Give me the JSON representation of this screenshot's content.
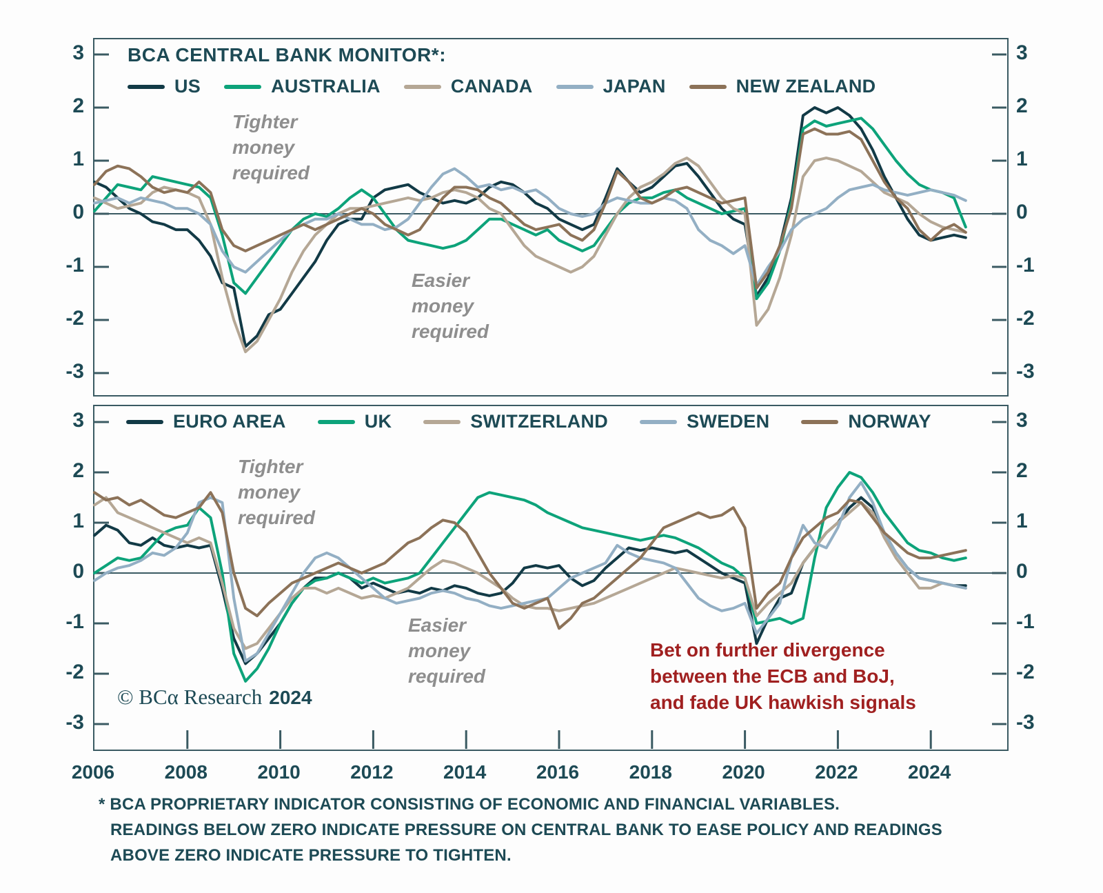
{
  "title": "BCA CENTRAL BANK MONITOR*:",
  "colors": {
    "navy": "#123a46",
    "green": "#0da37a",
    "tan": "#b5a795",
    "steel_blue": "#93afc4",
    "brown": "#8c7258",
    "text": "#1d4a55",
    "annotation_gray": "#8e8e8e",
    "callout_red": "#a02020",
    "axis": "#3a5a62"
  },
  "annotations": {
    "tighter": [
      "Tighter",
      "money",
      "required"
    ],
    "easier": [
      "Easier",
      "money",
      "required"
    ]
  },
  "callout": [
    "Bet on further divergence",
    "between the ECB and BoJ,",
    "and fade UK hawkish signals"
  ],
  "copyright": {
    "text": "© BCα Research",
    "year": "2024"
  },
  "footnote": [
    "* BCA PROPRIETARY INDICATOR CONSISTING OF ECONOMIC AND FINANCIAL VARIABLES.",
    "READINGS BELOW ZERO INDICATE PRESSURE ON CENTRAL BANK TO EASE POLICY AND READINGS",
    "ABOVE ZERO INDICATE PRESSURE TO TIGHTEN."
  ],
  "y_axis": {
    "ticks": [
      3,
      2,
      1,
      0,
      -1,
      -2,
      -3
    ]
  },
  "x_axis": {
    "labels": [
      "2006",
      "2008",
      "2010",
      "2012",
      "2014",
      "2016",
      "2018",
      "2020",
      "2022",
      "2024"
    ]
  },
  "chart_data": [
    {
      "type": "line",
      "panel": "top",
      "title": "BCA CENTRAL BANK MONITOR",
      "ylim": [
        -3,
        3
      ],
      "x_start": 2006.0,
      "x_step": 0.25,
      "series": [
        {
          "name": "US",
          "color": "navy",
          "values": [
            0.6,
            0.5,
            0.3,
            0.1,
            0.0,
            -0.15,
            -0.2,
            -0.3,
            -0.3,
            -0.5,
            -0.8,
            -1.3,
            -1.4,
            -2.5,
            -2.3,
            -1.9,
            -1.8,
            -1.5,
            -1.2,
            -0.9,
            -0.5,
            -0.2,
            -0.1,
            -0.1,
            0.3,
            0.45,
            0.5,
            0.55,
            0.4,
            0.3,
            0.2,
            0.25,
            0.2,
            0.3,
            0.5,
            0.6,
            0.55,
            0.4,
            0.2,
            0.1,
            -0.1,
            -0.2,
            -0.3,
            -0.2,
            0.3,
            0.85,
            0.6,
            0.4,
            0.5,
            0.7,
            0.9,
            0.95,
            0.7,
            0.4,
            0.1,
            -0.1,
            -0.2,
            -1.55,
            -1.2,
            -0.6,
            0.3,
            1.85,
            2.0,
            1.9,
            2.0,
            1.85,
            1.6,
            1.2,
            0.7,
            0.3,
            -0.1,
            -0.4,
            -0.5,
            -0.45,
            -0.4,
            -0.45
          ]
        },
        {
          "name": "AUSTRALIA",
          "color": "green",
          "values": [
            0.05,
            0.3,
            0.55,
            0.5,
            0.45,
            0.7,
            0.65,
            0.6,
            0.55,
            0.5,
            0.3,
            -0.4,
            -1.3,
            -1.5,
            -1.2,
            -0.9,
            -0.6,
            -0.3,
            -0.1,
            0.0,
            -0.05,
            0.1,
            0.3,
            0.45,
            0.3,
            0.0,
            -0.3,
            -0.5,
            -0.55,
            -0.6,
            -0.65,
            -0.6,
            -0.5,
            -0.3,
            -0.1,
            -0.1,
            -0.2,
            -0.3,
            -0.4,
            -0.3,
            -0.5,
            -0.6,
            -0.7,
            -0.6,
            -0.3,
            0.0,
            0.2,
            0.3,
            0.3,
            0.4,
            0.45,
            0.3,
            0.2,
            0.1,
            0.0,
            0.05,
            0.1,
            -1.6,
            -1.3,
            -0.7,
            0.2,
            1.6,
            1.75,
            1.65,
            1.7,
            1.75,
            1.8,
            1.6,
            1.3,
            1.0,
            0.75,
            0.55,
            0.45,
            0.4,
            0.3,
            -0.25
          ]
        },
        {
          "name": "CANADA",
          "color": "tan",
          "values": [
            0.3,
            0.2,
            0.1,
            0.15,
            0.2,
            0.4,
            0.5,
            0.45,
            0.4,
            0.3,
            -0.2,
            -1.2,
            -2.0,
            -2.6,
            -2.4,
            -2.0,
            -1.6,
            -1.1,
            -0.7,
            -0.4,
            -0.2,
            0.0,
            0.1,
            0.1,
            0.15,
            0.2,
            0.25,
            0.3,
            0.25,
            0.3,
            0.4,
            0.45,
            0.4,
            0.3,
            0.1,
            0.0,
            -0.3,
            -0.6,
            -0.8,
            -0.9,
            -1.0,
            -1.1,
            -1.0,
            -0.8,
            -0.4,
            0.0,
            0.3,
            0.5,
            0.6,
            0.75,
            0.95,
            1.05,
            0.9,
            0.6,
            0.3,
            0.1,
            0.0,
            -2.1,
            -1.8,
            -1.2,
            -0.4,
            0.7,
            1.0,
            1.05,
            1.0,
            0.9,
            0.8,
            0.6,
            0.4,
            0.3,
            0.2,
            0.0,
            -0.15,
            -0.25,
            -0.3,
            -0.35
          ]
        },
        {
          "name": "JAPAN",
          "color": "steel_blue",
          "values": [
            0.2,
            0.25,
            0.3,
            0.2,
            0.3,
            0.25,
            0.2,
            0.1,
            0.1,
            0.0,
            -0.2,
            -0.7,
            -1.0,
            -1.1,
            -0.9,
            -0.7,
            -0.5,
            -0.3,
            -0.2,
            -0.1,
            -0.1,
            0.0,
            -0.1,
            -0.2,
            -0.2,
            -0.3,
            -0.25,
            -0.1,
            0.2,
            0.5,
            0.75,
            0.85,
            0.7,
            0.5,
            0.55,
            0.45,
            0.5,
            0.4,
            0.45,
            0.3,
            0.1,
            0.0,
            -0.05,
            0.0,
            0.2,
            0.3,
            0.25,
            0.2,
            0.2,
            0.3,
            0.25,
            0.1,
            -0.3,
            -0.5,
            -0.6,
            -0.75,
            -0.6,
            -1.35,
            -1.0,
            -0.7,
            -0.3,
            -0.1,
            0.0,
            0.1,
            0.3,
            0.45,
            0.5,
            0.55,
            0.45,
            0.4,
            0.35,
            0.4,
            0.45,
            0.4,
            0.35,
            0.25
          ]
        },
        {
          "name": "NEW ZEALAND",
          "color": "brown",
          "values": [
            0.55,
            0.8,
            0.9,
            0.85,
            0.7,
            0.5,
            0.4,
            0.45,
            0.4,
            0.6,
            0.4,
            -0.3,
            -0.6,
            -0.7,
            -0.6,
            -0.5,
            -0.4,
            -0.3,
            -0.2,
            -0.3,
            -0.2,
            -0.1,
            0.0,
            0.1,
            0.0,
            -0.2,
            -0.3,
            -0.4,
            -0.3,
            0.0,
            0.3,
            0.5,
            0.5,
            0.45,
            0.3,
            0.2,
            0.0,
            -0.2,
            -0.3,
            -0.25,
            -0.2,
            -0.4,
            -0.5,
            -0.3,
            0.2,
            0.8,
            0.6,
            0.3,
            0.2,
            0.3,
            0.45,
            0.5,
            0.4,
            0.3,
            0.2,
            0.25,
            0.3,
            -1.4,
            -1.1,
            -0.6,
            0.1,
            1.5,
            1.6,
            1.5,
            1.5,
            1.55,
            1.4,
            1.0,
            0.6,
            0.3,
            0.1,
            -0.3,
            -0.5,
            -0.3,
            -0.2,
            -0.35
          ]
        }
      ]
    },
    {
      "type": "line",
      "panel": "bottom",
      "title": "BCA CENTRAL BANK MONITOR",
      "ylim": [
        -3,
        3
      ],
      "x_start": 2006.0,
      "x_step": 0.25,
      "series": [
        {
          "name": "EURO AREA",
          "color": "navy",
          "values": [
            0.75,
            0.95,
            0.85,
            0.6,
            0.55,
            0.7,
            0.55,
            0.5,
            0.55,
            0.5,
            0.55,
            -0.3,
            -1.3,
            -1.8,
            -1.6,
            -1.3,
            -1.0,
            -0.6,
            -0.3,
            -0.1,
            -0.1,
            0.0,
            -0.1,
            -0.3,
            -0.2,
            -0.3,
            -0.4,
            -0.35,
            -0.4,
            -0.3,
            -0.35,
            -0.25,
            -0.3,
            -0.4,
            -0.45,
            -0.4,
            -0.2,
            0.1,
            0.15,
            0.1,
            0.15,
            -0.1,
            -0.25,
            -0.15,
            0.1,
            0.3,
            0.5,
            0.45,
            0.5,
            0.45,
            0.4,
            0.45,
            0.3,
            0.15,
            0.0,
            -0.1,
            -0.2,
            -1.4,
            -0.9,
            -0.5,
            -0.4,
            0.2,
            0.5,
            0.8,
            1.0,
            1.3,
            1.5,
            1.3,
            0.8,
            0.4,
            0.1,
            -0.1,
            -0.15,
            -0.2,
            -0.25,
            -0.25
          ]
        },
        {
          "name": "UK",
          "color": "green",
          "values": [
            0.0,
            0.15,
            0.3,
            0.25,
            0.3,
            0.55,
            0.8,
            0.9,
            0.95,
            1.3,
            1.1,
            0.0,
            -1.6,
            -2.15,
            -1.9,
            -1.5,
            -1.0,
            -0.6,
            -0.3,
            -0.15,
            -0.1,
            0.0,
            -0.1,
            -0.2,
            -0.1,
            -0.2,
            -0.15,
            -0.1,
            0.0,
            0.3,
            0.6,
            0.9,
            1.2,
            1.5,
            1.6,
            1.55,
            1.5,
            1.45,
            1.35,
            1.2,
            1.1,
            1.0,
            0.9,
            0.85,
            0.8,
            0.75,
            0.7,
            0.65,
            0.7,
            0.75,
            0.7,
            0.6,
            0.5,
            0.35,
            0.2,
            0.1,
            -0.1,
            -1.0,
            -0.95,
            -0.9,
            -1.0,
            -0.9,
            0.3,
            1.3,
            1.7,
            2.0,
            1.9,
            1.6,
            1.2,
            0.9,
            0.6,
            0.45,
            0.4,
            0.3,
            0.25,
            0.3
          ]
        },
        {
          "name": "SWITZERLAND",
          "color": "tan",
          "values": [
            1.35,
            1.5,
            1.2,
            1.1,
            1.0,
            0.9,
            0.8,
            0.7,
            0.6,
            0.7,
            0.6,
            -0.2,
            -1.1,
            -1.5,
            -1.4,
            -1.1,
            -0.8,
            -0.5,
            -0.3,
            -0.3,
            -0.4,
            -0.3,
            -0.4,
            -0.5,
            -0.45,
            -0.5,
            -0.4,
            -0.3,
            -0.1,
            0.1,
            0.25,
            0.2,
            0.1,
            0.0,
            -0.15,
            -0.3,
            -0.5,
            -0.65,
            -0.7,
            -0.7,
            -0.75,
            -0.7,
            -0.65,
            -0.6,
            -0.5,
            -0.4,
            -0.3,
            -0.2,
            -0.1,
            0.0,
            0.1,
            0.05,
            0.0,
            -0.05,
            -0.1,
            -0.05,
            -0.1,
            -0.85,
            -0.6,
            -0.4,
            -0.2,
            0.2,
            0.5,
            0.8,
            1.0,
            1.2,
            1.4,
            1.2,
            0.7,
            0.3,
            0.0,
            -0.3,
            -0.3,
            -0.2,
            -0.25,
            -0.3
          ]
        },
        {
          "name": "SWEDEN",
          "color": "steel_blue",
          "values": [
            -0.15,
            0.0,
            0.1,
            0.15,
            0.25,
            0.4,
            0.35,
            0.5,
            0.8,
            1.4,
            1.5,
            1.4,
            -0.5,
            -1.75,
            -1.6,
            -1.2,
            -0.8,
            -0.4,
            0.0,
            0.3,
            0.4,
            0.3,
            0.1,
            -0.1,
            -0.3,
            -0.5,
            -0.6,
            -0.55,
            -0.5,
            -0.4,
            -0.35,
            -0.4,
            -0.5,
            -0.55,
            -0.65,
            -0.7,
            -0.65,
            -0.6,
            -0.55,
            -0.5,
            -0.3,
            -0.1,
            0.0,
            0.1,
            0.2,
            0.55,
            0.4,
            0.3,
            0.25,
            0.2,
            0.1,
            -0.2,
            -0.5,
            -0.65,
            -0.75,
            -0.7,
            -0.6,
            -1.2,
            -0.9,
            -0.6,
            0.3,
            0.95,
            0.6,
            0.5,
            0.9,
            1.5,
            1.8,
            1.4,
            0.8,
            0.4,
            0.1,
            -0.1,
            -0.15,
            -0.2,
            -0.25,
            -0.3
          ]
        },
        {
          "name": "NORWAY",
          "color": "brown",
          "values": [
            1.6,
            1.45,
            1.5,
            1.35,
            1.45,
            1.3,
            1.15,
            1.1,
            1.2,
            1.3,
            1.6,
            1.2,
            0.0,
            -0.7,
            -0.85,
            -0.6,
            -0.4,
            -0.2,
            -0.1,
            0.0,
            0.1,
            0.2,
            0.1,
            0.0,
            0.1,
            0.2,
            0.4,
            0.6,
            0.7,
            0.9,
            1.05,
            1.0,
            0.8,
            0.4,
            0.0,
            -0.3,
            -0.6,
            -0.7,
            -0.6,
            -0.5,
            -1.1,
            -0.9,
            -0.6,
            -0.5,
            -0.3,
            -0.1,
            0.1,
            0.3,
            0.6,
            0.9,
            1.0,
            1.1,
            1.2,
            1.1,
            1.15,
            1.3,
            0.9,
            -0.7,
            -0.4,
            -0.2,
            0.3,
            0.7,
            0.9,
            1.1,
            1.2,
            1.45,
            1.4,
            1.1,
            0.8,
            0.6,
            0.4,
            0.3,
            0.3,
            0.35,
            0.4,
            0.45
          ]
        }
      ]
    }
  ]
}
